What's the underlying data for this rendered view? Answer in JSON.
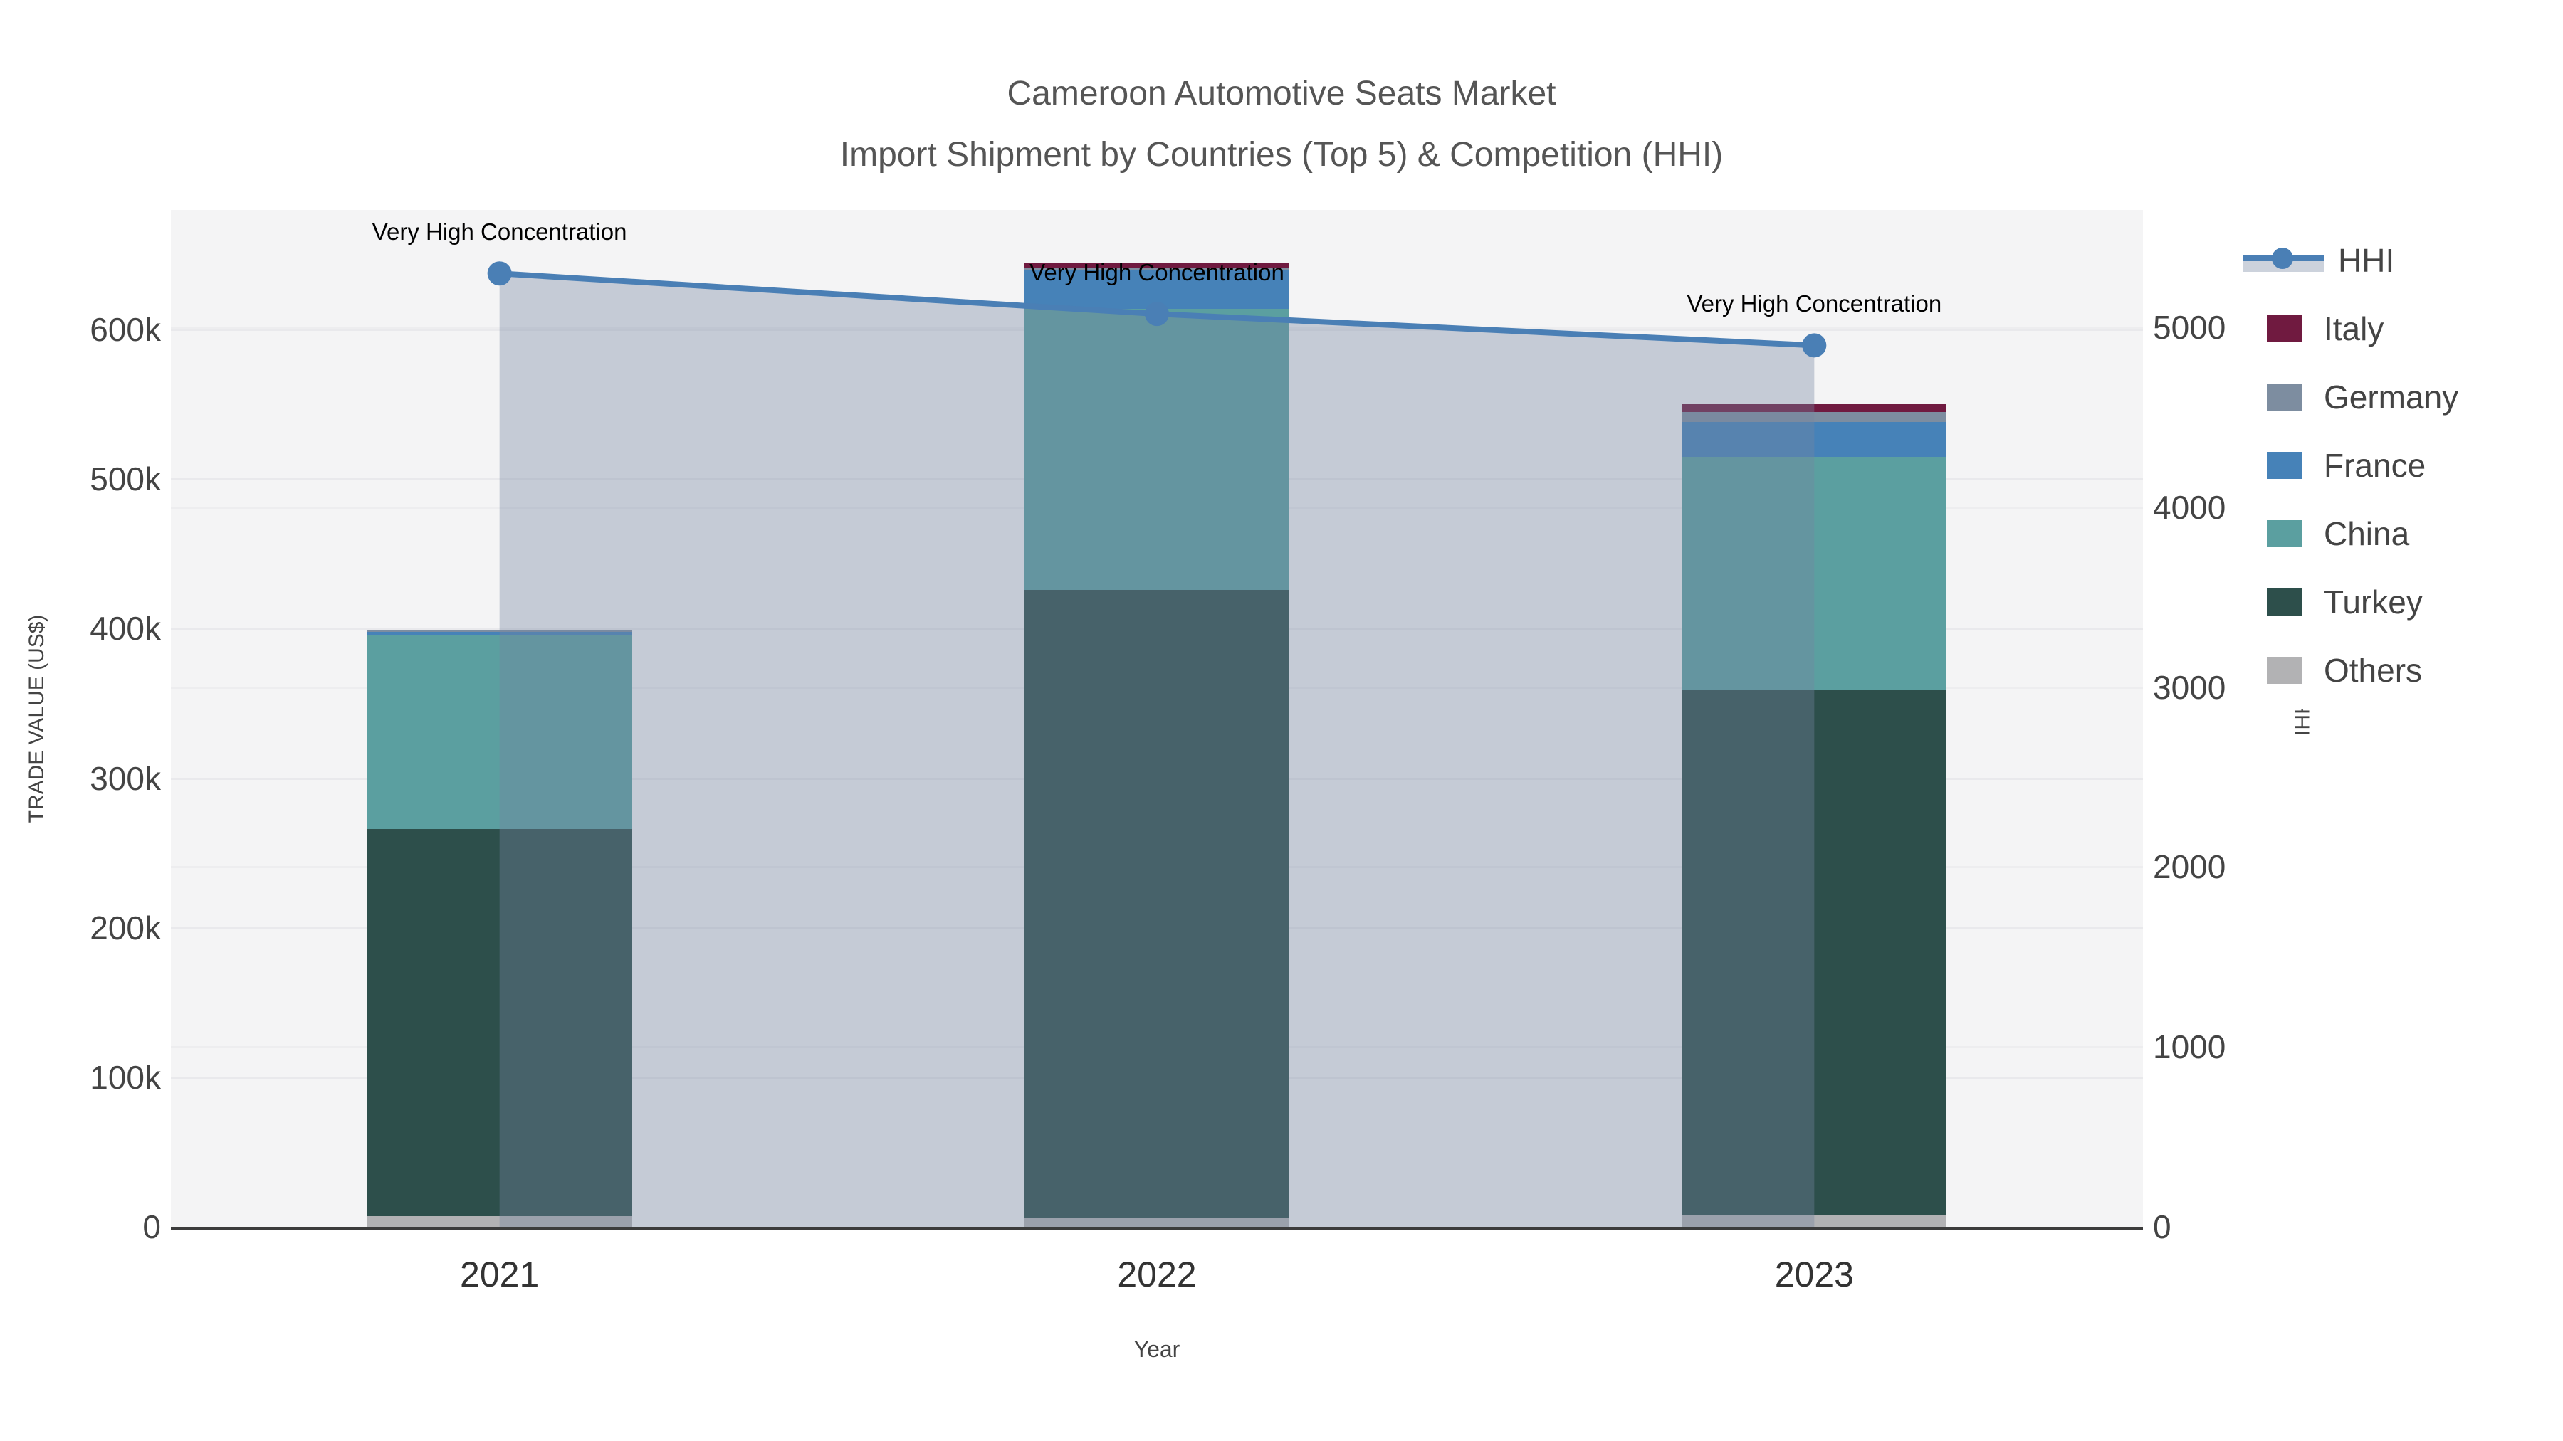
{
  "title": {
    "line1": "Cameroon Automotive Seats Market",
    "line2": "Import Shipment by Countries (Top 5) & Competition (HHI)"
  },
  "axes": {
    "x": {
      "title": "Year",
      "categories": [
        "2021",
        "2022",
        "2023"
      ]
    },
    "y_left": {
      "title": "TRADE VALUE (US$)",
      "max": 680000,
      "tick_step": 100000,
      "ticks": [
        "0",
        "100k",
        "200k",
        "300k",
        "400k",
        "500k",
        "600k"
      ]
    },
    "y_right": {
      "title": "HHI",
      "max": 5653,
      "tick_step": 1000,
      "ticks": [
        "0",
        "1000",
        "2000",
        "3000",
        "4000",
        "5000"
      ]
    }
  },
  "legend": {
    "items": [
      {
        "label": "HHI",
        "type": "line",
        "color": "#4a7fb5"
      },
      {
        "label": "Italy",
        "type": "swatch",
        "color": "#701a40"
      },
      {
        "label": "Germany",
        "type": "swatch",
        "color": "#7d8da0"
      },
      {
        "label": "France",
        "type": "swatch",
        "color": "#4682b8"
      },
      {
        "label": "China",
        "type": "swatch",
        "color": "#5b9fa0"
      },
      {
        "label": "Turkey",
        "type": "swatch",
        "color": "#2d4f4b"
      },
      {
        "label": "Others",
        "type": "swatch",
        "color": "#b2b2b4"
      }
    ]
  },
  "chart_data": {
    "type": "bar+line",
    "title": "Cameroon Automotive Seats Market — Import Shipment by Countries (Top 5) & Competition (HHI)",
    "categories": [
      "2021",
      "2022",
      "2023"
    ],
    "bar_stack_order": "bottom-to-top",
    "bar_series": [
      {
        "name": "Others",
        "color": "#b2b2b4",
        "values": [
          7000,
          6000,
          8000
        ]
      },
      {
        "name": "Turkey",
        "color": "#2d4f4b",
        "values": [
          259000,
          420000,
          351000
        ]
      },
      {
        "name": "China",
        "color": "#5b9fa0",
        "values": [
          130000,
          188000,
          156000
        ]
      },
      {
        "name": "France",
        "color": "#4682b8",
        "values": [
          2000,
          26000,
          23000
        ]
      },
      {
        "name": "Germany",
        "color": "#7d8da0",
        "values": [
          600,
          1000,
          7000
        ]
      },
      {
        "name": "Italy",
        "color": "#701a40",
        "values": [
          600,
          4000,
          5000
        ]
      }
    ],
    "bar_totals": [
      399200,
      645000,
      550000
    ],
    "line_series": {
      "name": "HHI",
      "axis": "right",
      "color": "#4a7fb5",
      "fill_color": "rgba(118,134,160,0.37)",
      "values": [
        5300,
        5075,
        4900
      ]
    },
    "annotations": [
      {
        "text": "Very High Concentration",
        "category": "2021"
      },
      {
        "text": "Very High Concentration",
        "category": "2022"
      },
      {
        "text": "Very High Concentration",
        "category": "2023"
      }
    ],
    "xlabel": "Year",
    "ylabel_left": "TRADE VALUE (US$)",
    "ylabel_right": "HHI",
    "ylim_left": [
      0,
      680000
    ],
    "ylim_right": [
      0,
      5653
    ],
    "grid": true,
    "legend_position": "right"
  },
  "colors": {
    "plot_bg": "#f4f4f5",
    "grid": "#e9e9ec",
    "axis_line": "#3c3c3c",
    "tick_text": "#444444",
    "title_text": "#555555"
  }
}
